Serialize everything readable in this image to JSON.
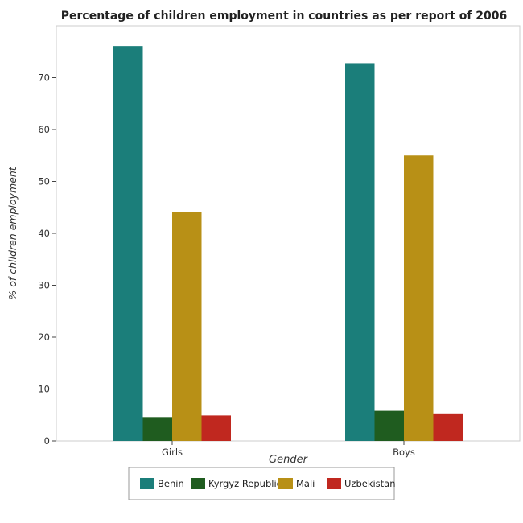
{
  "chart_data": {
    "type": "bar",
    "title": "Percentage of children employment in countries as per report of 2006",
    "xlabel": "Gender",
    "ylabel": "% of children employment",
    "categories": [
      "Girls",
      "Boys"
    ],
    "series": [
      {
        "name": "Benin",
        "values": [
          76.1,
          72.8
        ],
        "color": "#1b7e7a"
      },
      {
        "name": "Kyrgyz Republic",
        "values": [
          4.6,
          5.8
        ],
        "color": "#1f5c1f"
      },
      {
        "name": "Mali",
        "values": [
          44.1,
          55.0
        ],
        "color": "#b89016"
      },
      {
        "name": "Uzbekistan",
        "values": [
          4.9,
          5.3
        ],
        "color": "#c0281f"
      }
    ],
    "ylim": [
      0,
      80
    ],
    "yticks": [
      0,
      10,
      20,
      30,
      40,
      50,
      60,
      70
    ],
    "grid": false,
    "legend_position": "bottom"
  }
}
